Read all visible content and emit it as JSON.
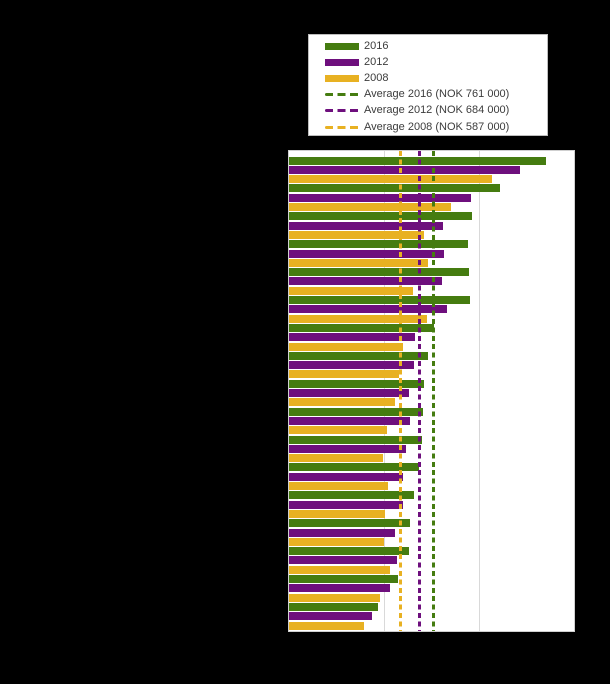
{
  "page": {
    "background_color": "#000000",
    "note": "Chart title, y-axis category labels and x-axis tick labels are rendered black-on-black and are not visible in the screenshot."
  },
  "legend": {
    "background_color": "#ffffff",
    "border_color": "#bdbdbd",
    "items": [
      {
        "id": "2016",
        "label": "2016",
        "color": "#457c10",
        "style": "solid"
      },
      {
        "id": "2012",
        "label": "2012",
        "color": "#6e0f7d",
        "style": "solid"
      },
      {
        "id": "2008",
        "label": "2008",
        "color": "#e8b122",
        "style": "solid"
      },
      {
        "id": "avg-2016",
        "label": "Average 2016 (NOK 761 000)",
        "color": "#457c10",
        "style": "dashed"
      },
      {
        "id": "avg-2012",
        "label": "Average 2012 (NOK 684 000)",
        "color": "#6e0f7d",
        "style": "dashed"
      },
      {
        "id": "avg-2008",
        "label": "Average 2008 (NOK 587 000)",
        "color": "#e8b122",
        "style": "dashed"
      }
    ]
  },
  "chart_data": {
    "type": "bar",
    "orientation": "horizontal",
    "title": "",
    "xlabel": "",
    "ylabel": "",
    "xlim": [
      0,
      1500000
    ],
    "x_gridlines": [
      500000,
      1000000
    ],
    "grid": true,
    "legend_position": "top",
    "plot_background": "#ffffff",
    "categories": [
      "",
      "",
      "",
      "",
      "",
      "",
      "",
      "",
      "",
      "",
      "",
      "",
      "",
      "",
      "",
      "",
      ""
    ],
    "categories_note": "17 category rows; labels not visible (black text on black background)",
    "series": [
      {
        "name": "2016",
        "color": "#457c10",
        "values": [
          1351000,
          1112000,
          963000,
          943000,
          947000,
          951000,
          765000,
          733000,
          708000,
          703000,
          698000,
          686000,
          660000,
          637000,
          632000,
          575000,
          468000
        ]
      },
      {
        "name": "2012",
        "color": "#6e0f7d",
        "values": [
          1213000,
          957000,
          810000,
          815000,
          803000,
          829000,
          663000,
          660000,
          632000,
          638000,
          618000,
          602000,
          602000,
          558000,
          570000,
          530000,
          436000
        ]
      },
      {
        "name": "2008",
        "color": "#e8b122",
        "values": [
          1070000,
          855000,
          710000,
          730000,
          650000,
          728000,
          602000,
          580000,
          558000,
          518000,
          497000,
          523000,
          506000,
          502000,
          530000,
          481000,
          396000
        ]
      }
    ],
    "average_lines": [
      {
        "id": "avg-2016",
        "label": "Average 2016 (NOK 761 000)",
        "value": 761000,
        "color": "#457c10"
      },
      {
        "id": "avg-2012",
        "label": "Average 2012 (NOK 684 000)",
        "value": 684000,
        "color": "#6e0f7d"
      },
      {
        "id": "avg-2008",
        "label": "Average 2008 (NOK 587 000)",
        "value": 587000,
        "color": "#e8b122"
      }
    ]
  }
}
